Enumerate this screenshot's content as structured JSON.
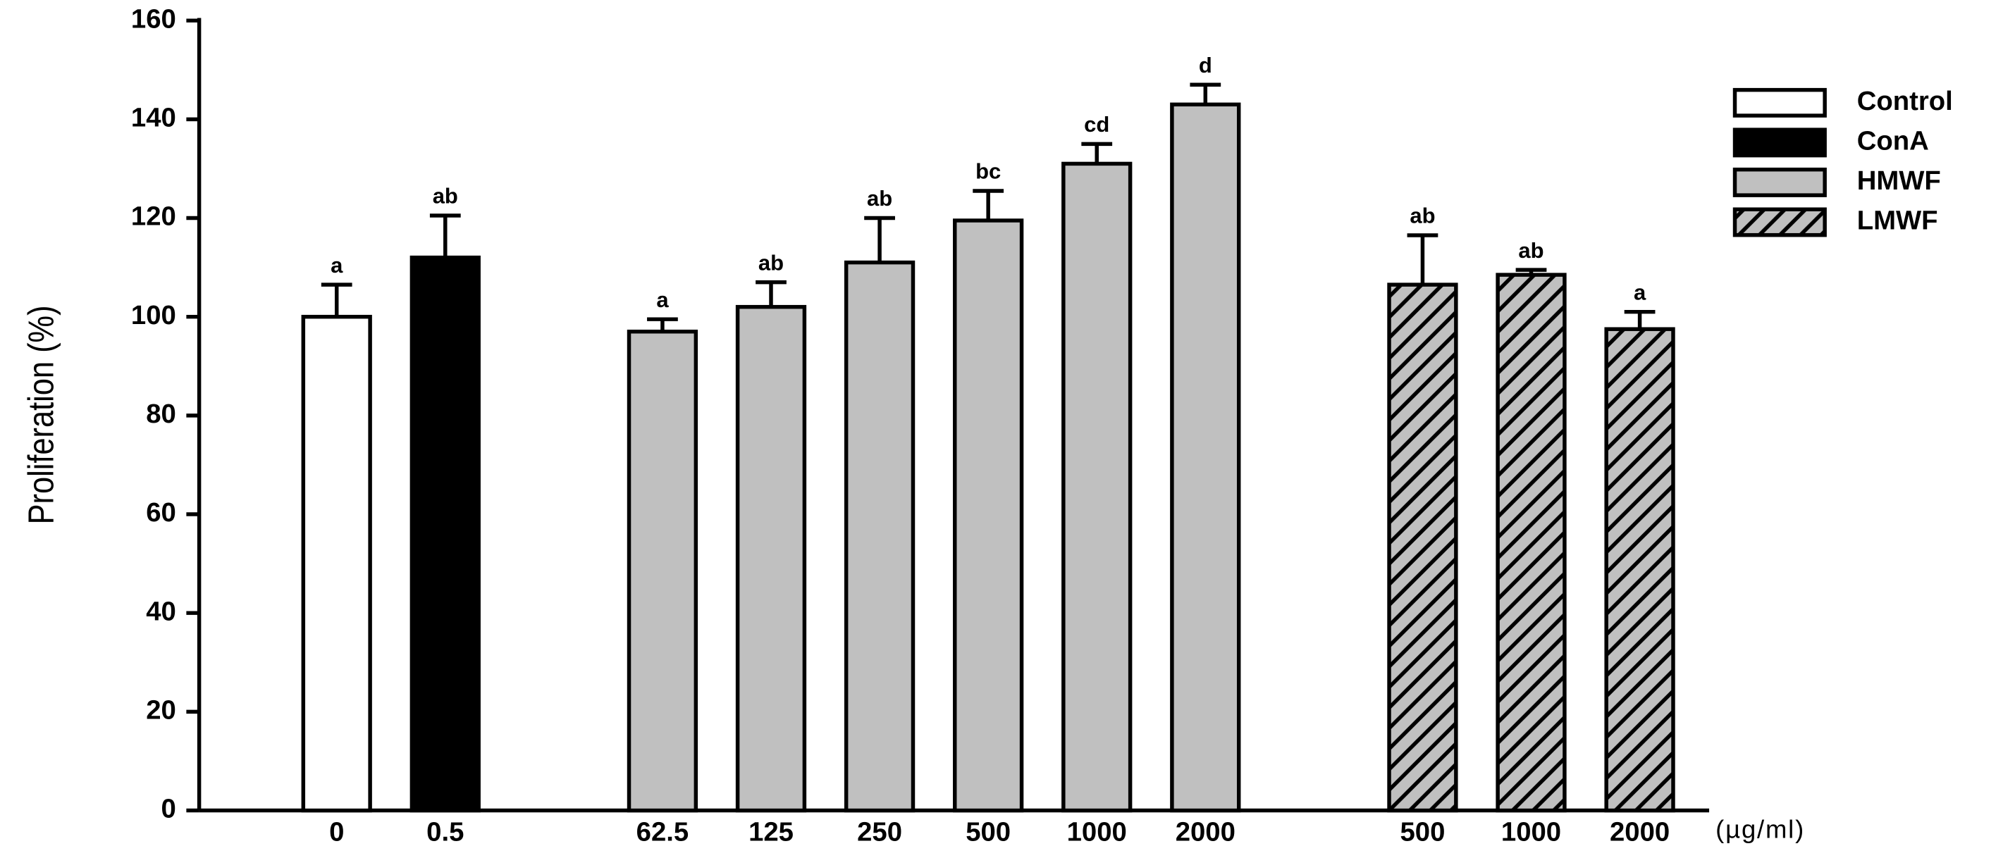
{
  "chart_data": {
    "type": "bar",
    "ylabel": "Proliferation (%)",
    "xlabel": "(µg/ml)",
    "categories": [
      "0",
      "0.5",
      "62.5",
      "125",
      "250",
      "500",
      "1000",
      "2000",
      "500",
      "1000",
      "2000"
    ],
    "ylim": [
      0,
      160
    ],
    "yticks": [
      0,
      20,
      40,
      60,
      80,
      100,
      120,
      140,
      160
    ],
    "series": [
      {
        "name": "Control",
        "color": "#ffffff",
        "hatch": false,
        "values": [
          100,
          null,
          null,
          null,
          null,
          null,
          null,
          null,
          null,
          null,
          null
        ],
        "errors": [
          6.5,
          null,
          null,
          null,
          null,
          null,
          null,
          null,
          null,
          null,
          null
        ],
        "annotations": [
          "a",
          null,
          null,
          null,
          null,
          null,
          null,
          null,
          null,
          null,
          null
        ]
      },
      {
        "name": "ConA",
        "color": "#000000",
        "hatch": false,
        "values": [
          null,
          112,
          null,
          null,
          null,
          null,
          null,
          null,
          null,
          null,
          null
        ],
        "errors": [
          null,
          8.5,
          null,
          null,
          null,
          null,
          null,
          null,
          null,
          null,
          null
        ],
        "annotations": [
          null,
          "ab",
          null,
          null,
          null,
          null,
          null,
          null,
          null,
          null,
          null
        ]
      },
      {
        "name": "HMWF",
        "color": "#c0c0c0",
        "hatch": false,
        "values": [
          null,
          null,
          97,
          102,
          111,
          119.5,
          131,
          143,
          null,
          null,
          null
        ],
        "errors": [
          null,
          null,
          2.5,
          5,
          9,
          6,
          4,
          4,
          null,
          null,
          null
        ],
        "annotations": [
          null,
          null,
          "a",
          "ab",
          "ab",
          "bc",
          "cd",
          "d",
          null,
          null,
          null
        ]
      },
      {
        "name": "LMWF",
        "color": "#c0c0c0",
        "hatch": true,
        "values": [
          null,
          null,
          null,
          null,
          null,
          null,
          null,
          null,
          106.5,
          108.5,
          97.5
        ],
        "errors": [
          null,
          null,
          null,
          null,
          null,
          null,
          null,
          null,
          10,
          1,
          3.5
        ],
        "annotations": [
          null,
          null,
          null,
          null,
          null,
          null,
          null,
          null,
          "ab",
          "ab",
          "a"
        ]
      }
    ]
  }
}
